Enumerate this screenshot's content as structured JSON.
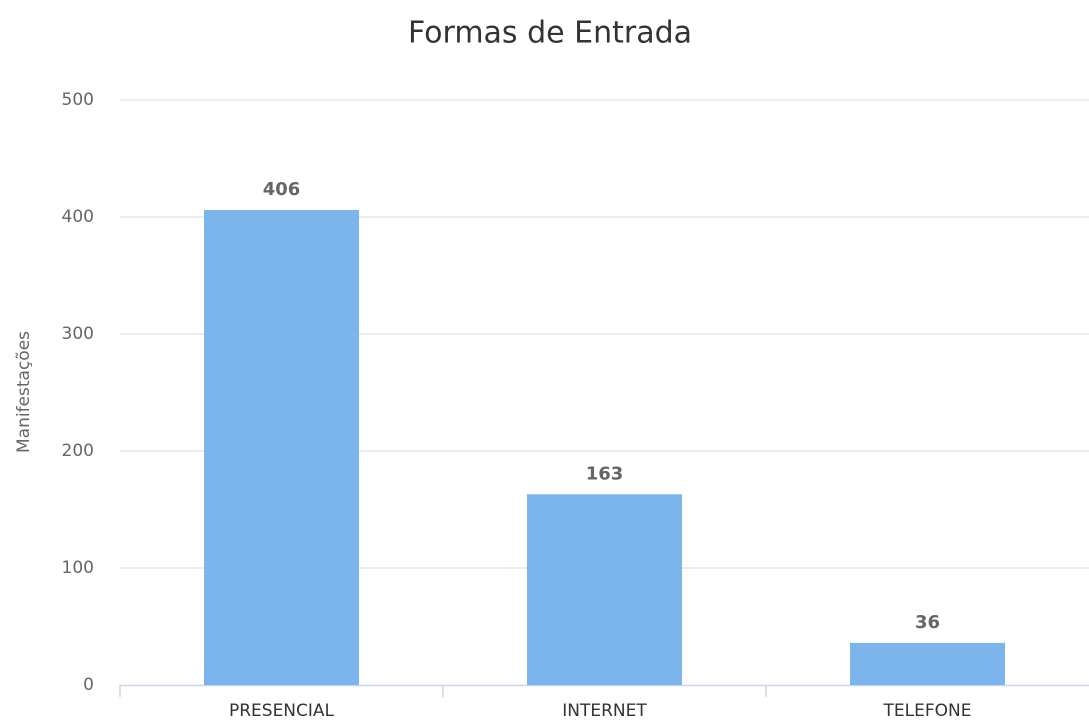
{
  "chart_data": {
    "type": "bar",
    "title": "Formas de Entrada",
    "y_label": "Manifestações",
    "categories": [
      "PRESENCIAL",
      "INTERNET",
      "TELEFONE"
    ],
    "values": [
      406,
      163,
      36
    ],
    "color": "#7cb5ec",
    "ylim": [
      0,
      500
    ],
    "yticks": [
      0,
      100,
      200,
      300,
      400,
      500
    ],
    "grid": true,
    "data_labels": true
  }
}
